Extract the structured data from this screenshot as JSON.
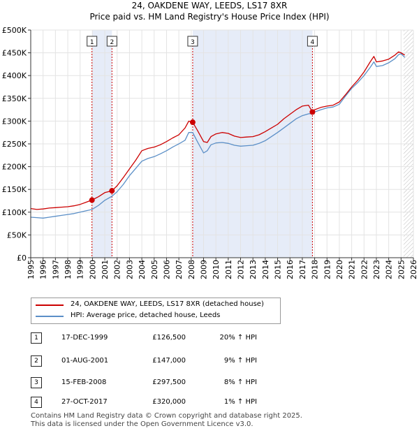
{
  "chart_data": {
    "type": "line",
    "title": "24, OAKDENE WAY, LEEDS, LS17 8XR",
    "subtitle": "Price paid vs. HM Land Registry's House Price Index (HPI)",
    "xlim": [
      1995,
      2026
    ],
    "ylim": [
      0,
      500000
    ],
    "x_ticks": [
      1995,
      1996,
      1997,
      1998,
      1999,
      2000,
      2001,
      2002,
      2003,
      2004,
      2005,
      2006,
      2007,
      2008,
      2009,
      2010,
      2011,
      2012,
      2013,
      2014,
      2015,
      2016,
      2017,
      2018,
      2019,
      2020,
      2021,
      2022,
      2023,
      2024,
      2025,
      2026
    ],
    "y_ticks": [
      {
        "value": 0,
        "label": "£0"
      },
      {
        "value": 50000,
        "label": "£50K"
      },
      {
        "value": 100000,
        "label": "£100K"
      },
      {
        "value": 150000,
        "label": "£150K"
      },
      {
        "value": 200000,
        "label": "£200K"
      },
      {
        "value": 250000,
        "label": "£250K"
      },
      {
        "value": 300000,
        "label": "£300K"
      },
      {
        "value": 350000,
        "label": "£350K"
      },
      {
        "value": 400000,
        "label": "£400K"
      },
      {
        "value": 450000,
        "label": "£450K"
      },
      {
        "value": 500000,
        "label": "£500K"
      }
    ],
    "series": [
      {
        "name": "24, OAKDENE WAY, LEEDS, LS17 8XR (detached house)",
        "color": "#cc0000",
        "x": [
          1995.0,
          1995.5,
          1996.0,
          1996.5,
          1997.0,
          1997.5,
          1998.0,
          1998.5,
          1999.0,
          1999.5,
          1999.96,
          2000.5,
          2001.0,
          2001.58,
          2002.0,
          2002.5,
          2003.0,
          2003.5,
          2004.0,
          2004.5,
          2005.0,
          2005.5,
          2006.0,
          2006.5,
          2007.0,
          2007.5,
          2007.8,
          2008.12,
          2008.5,
          2009.0,
          2009.3,
          2009.6,
          2010.0,
          2010.5,
          2011.0,
          2011.5,
          2012.0,
          2012.5,
          2013.0,
          2013.5,
          2014.0,
          2014.5,
          2015.0,
          2015.5,
          2016.0,
          2016.5,
          2017.0,
          2017.5,
          2017.82,
          2018.0,
          2018.5,
          2019.0,
          2019.5,
          2020.0,
          2020.5,
          2021.0,
          2021.5,
          2022.0,
          2022.5,
          2022.8,
          2023.0,
          2023.5,
          2024.0,
          2024.5,
          2024.8,
          2025.0,
          2025.3
        ],
        "values": [
          108000,
          106000,
          107000,
          109000,
          110000,
          111000,
          112000,
          114000,
          117000,
          122000,
          126500,
          134000,
          143000,
          147000,
          158000,
          176000,
          195000,
          214000,
          235000,
          240000,
          243000,
          248000,
          255000,
          263000,
          270000,
          285000,
          300000,
          297500,
          280000,
          255000,
          253000,
          266000,
          272000,
          275000,
          273000,
          267000,
          264000,
          265000,
          266000,
          270000,
          277000,
          285000,
          293000,
          305000,
          315000,
          325000,
          333000,
          335000,
          320000,
          325000,
          330000,
          333000,
          335000,
          342000,
          358000,
          375000,
          390000,
          408000,
          430000,
          442000,
          430000,
          432000,
          436000,
          445000,
          452000,
          450000,
          445000
        ]
      },
      {
        "name": "HPI: Average price, detached house, Leeds",
        "color": "#5b8fc7",
        "x": [
          1995.0,
          1995.5,
          1996.0,
          1996.5,
          1997.0,
          1997.5,
          1998.0,
          1998.5,
          1999.0,
          1999.5,
          1999.96,
          2000.5,
          2001.0,
          2001.58,
          2002.0,
          2002.5,
          2003.0,
          2003.5,
          2004.0,
          2004.5,
          2005.0,
          2005.5,
          2006.0,
          2006.5,
          2007.0,
          2007.5,
          2007.8,
          2008.12,
          2008.5,
          2009.0,
          2009.3,
          2009.6,
          2010.0,
          2010.5,
          2011.0,
          2011.5,
          2012.0,
          2012.5,
          2013.0,
          2013.5,
          2014.0,
          2014.5,
          2015.0,
          2015.5,
          2016.0,
          2016.5,
          2017.0,
          2017.5,
          2017.82,
          2018.0,
          2018.5,
          2019.0,
          2019.5,
          2020.0,
          2020.5,
          2021.0,
          2021.5,
          2022.0,
          2022.5,
          2022.8,
          2023.0,
          2023.5,
          2024.0,
          2024.5,
          2024.8,
          2025.0,
          2025.3
        ],
        "values": [
          89000,
          88000,
          87000,
          89000,
          91000,
          93000,
          95000,
          97000,
          100000,
          103000,
          106000,
          115000,
          126000,
          135000,
          145000,
          161000,
          180000,
          196000,
          212000,
          218000,
          222000,
          228000,
          235000,
          243000,
          250000,
          258000,
          275000,
          275000,
          255000,
          230000,
          235000,
          248000,
          252000,
          253000,
          251000,
          247000,
          245000,
          246000,
          247000,
          251000,
          257000,
          266000,
          275000,
          285000,
          295000,
          305000,
          312000,
          316000,
          317000,
          320000,
          325000,
          329000,
          331000,
          337000,
          355000,
          372000,
          385000,
          400000,
          418000,
          430000,
          420000,
          422000,
          428000,
          437000,
          446000,
          448000,
          440000
        ]
      }
    ],
    "sales": [
      {
        "num": "1",
        "x": 1999.96,
        "value": 126500
      },
      {
        "num": "2",
        "x": 2001.58,
        "value": 147000
      },
      {
        "num": "3",
        "x": 2008.12,
        "value": 297500
      },
      {
        "num": "4",
        "x": 2017.82,
        "value": 320000
      }
    ],
    "forecast_start": 2025.2
  },
  "legend": {
    "series1": "24, OAKDENE WAY, LEEDS, LS17 8XR (detached house)",
    "series2": "HPI: Average price, detached house, Leeds"
  },
  "transactions": [
    {
      "num": "1",
      "date": "17-DEC-1999",
      "price": "£126,500",
      "hpi": "20% ↑ HPI"
    },
    {
      "num": "2",
      "date": "01-AUG-2001",
      "price": "£147,000",
      "hpi": "9% ↑ HPI"
    },
    {
      "num": "3",
      "date": "15-FEB-2008",
      "price": "£297,500",
      "hpi": "8% ↑ HPI"
    },
    {
      "num": "4",
      "date": "27-OCT-2017",
      "price": "£320,000",
      "hpi": "1% ↑ HPI"
    }
  ],
  "footer": {
    "line1": "Contains HM Land Registry data © Crown copyright and database right 2025.",
    "line2": "This data is licensed under the Open Government Licence v3.0."
  },
  "colors": {
    "price_line": "#cc0000",
    "hpi_line": "#5b8fc7",
    "shade": "#e6ecf8",
    "marker_line": "#cc0000"
  }
}
